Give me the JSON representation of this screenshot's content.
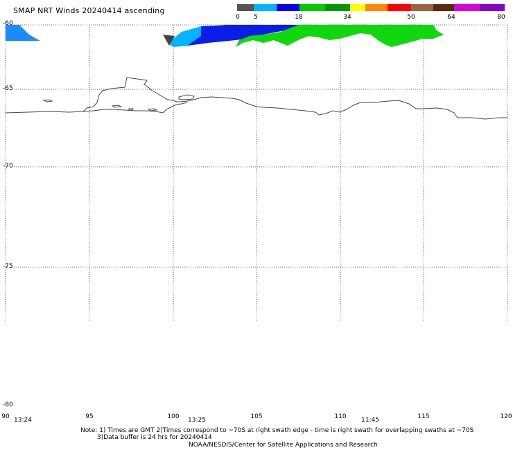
{
  "title": "SMAP NRT Winds 20240414 ascending",
  "colorbar": {
    "labels": [
      "0",
      "5",
      "18",
      "34",
      "50",
      "64",
      "80"
    ],
    "colors": [
      "#555555",
      "#0099ff",
      "#00aaff",
      "#0000ee",
      "#00cc00",
      "#009900",
      "#ffff00",
      "#ff9900",
      "#ff0000",
      "#ee0000",
      "#996633",
      "#663300",
      "#cc00cc",
      "#8800cc"
    ]
  },
  "map": {
    "projection_limits": {
      "lon": [
        90,
        120
      ],
      "lat": [
        -80,
        -60
      ]
    },
    "lat_ticks": [
      "-60",
      "-65",
      "-70",
      "-75",
      "-80"
    ],
    "lon_ticks": [
      "90",
      "95",
      "100",
      "105",
      "110",
      "115",
      "120"
    ],
    "times": [
      "13:24",
      "13:25",
      "11:45"
    ]
  },
  "notes": {
    "line1": "Note: 1) Times are GMT 2)Times correspond to ~70S at right swath edge - time is right swath for overlapping swaths at ~70S",
    "line2": "3)Data buffer is 24 hrs for 20240414",
    "line3": "NOAA/NESDIS/Center for Satellite Applications and Research"
  }
}
